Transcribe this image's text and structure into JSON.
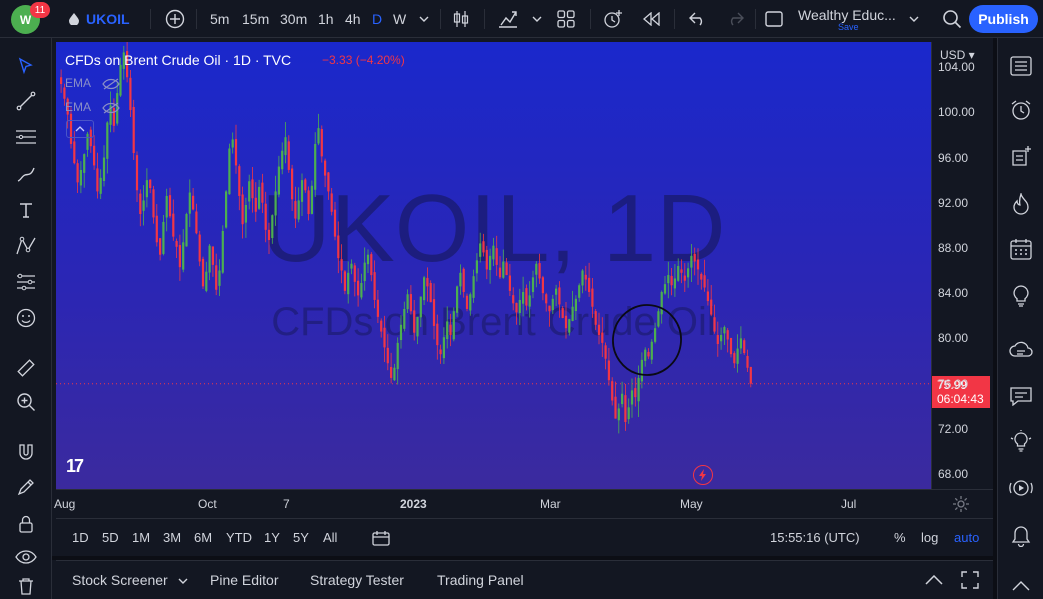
{
  "topbar": {
    "notifications": "11",
    "avatar_initials": "W",
    "symbol": "UKOIL",
    "intervals": [
      "5m",
      "15m",
      "30m",
      "1h",
      "4h",
      "D",
      "W"
    ],
    "selected_interval": "D",
    "layout_name": "Wealthy Educ...",
    "layout_status": "Save",
    "publish_label": "Publish"
  },
  "chart": {
    "title": "CFDs on Brent Crude Oil · 1D · TVC",
    "change": "−3.33 (−4.20%)",
    "indicators": [
      "EMA",
      "EMA"
    ],
    "watermark_symbol": "UKOIL, 1D",
    "watermark_name": "CFDs on Brent Crude Oil",
    "logo_text": "17",
    "accent_up": "#4caf50",
    "accent_down": "#f23645"
  },
  "price_scale": {
    "currency": "USD",
    "ticks": [
      "104.00",
      "100.00",
      "96.00",
      "92.00",
      "88.00",
      "84.00",
      "80.00",
      "76.00",
      "72.00",
      "68.00"
    ],
    "last_price": "75.99",
    "countdown": "06:04:43"
  },
  "time_scale": {
    "ticks": [
      "Aug",
      "Oct",
      "7",
      "2023",
      "Mar",
      "May",
      "Jul"
    ]
  },
  "range_bar": {
    "ranges": [
      "1D",
      "5D",
      "1M",
      "3M",
      "6M",
      "YTD",
      "1Y",
      "5Y",
      "All"
    ],
    "clock": "15:55:16 (UTC)",
    "percent_label": "%",
    "log_label": "log",
    "auto_label": "auto"
  },
  "bottom_panel": {
    "tabs": [
      "Stock Screener",
      "Pine Editor",
      "Strategy Tester",
      "Trading Panel"
    ]
  },
  "chart_data": {
    "type": "candlestick",
    "ylim": [
      66,
      108
    ],
    "x_labels": [
      "Aug",
      "Oct",
      "7",
      "2023",
      "Mar",
      "May",
      "Jul"
    ],
    "last_price": 75.99,
    "closes": [
      102.5,
      101.2,
      99.8,
      97.2,
      95.5,
      93.8,
      94.9,
      96.3,
      98.1,
      97.0,
      95.3,
      93.0,
      94.2,
      96.0,
      99.1,
      100.6,
      98.8,
      101.7,
      104.2,
      105.3,
      103.1,
      100.2,
      96.4,
      93.1,
      91.0,
      92.2,
      94.0,
      93.3,
      90.7,
      88.5,
      87.4,
      90.3,
      92.6,
      90.8,
      89.0,
      88.1,
      86.3,
      88.5,
      91.0,
      92.9,
      91.4,
      89.3,
      86.8,
      84.6,
      85.9,
      88.2,
      86.5,
      84.3,
      86.0,
      89.5,
      93.0,
      96.8,
      97.6,
      95.3,
      92.6,
      90.1,
      91.8,
      93.9,
      92.4,
      91.2,
      93.4,
      92.0,
      89.6,
      88.7,
      90.9,
      93.0,
      95.2,
      96.6,
      97.8,
      94.9,
      92.3,
      90.6,
      92.2,
      94.0,
      93.1,
      91.0,
      93.5,
      97.2,
      98.6,
      96.1,
      94.4,
      93.0,
      91.2,
      89.0,
      87.1,
      86.0,
      84.2,
      85.8,
      86.6,
      85.0,
      83.8,
      84.9,
      86.7,
      87.4,
      85.6,
      83.4,
      81.9,
      80.6,
      79.2,
      77.8,
      76.5,
      77.4,
      79.6,
      81.2,
      82.6,
      83.9,
      82.4,
      80.5,
      81.9,
      83.7,
      85.4,
      84.6,
      83.2,
      81.1,
      79.4,
      78.6,
      80.1,
      81.5,
      80.3,
      82.4,
      84.6,
      85.8,
      84.1,
      82.6,
      83.9,
      85.5,
      86.9,
      88.4,
      87.6,
      86.1,
      87.3,
      88.2,
      86.5,
      85.4,
      86.8,
      85.6,
      84.2,
      83.1,
      82.3,
      83.4,
      84.1,
      82.9,
      83.8,
      85.4,
      86.6,
      85.3,
      84.0,
      83.1,
      82.4,
      83.5,
      84.4,
      83.0,
      81.8,
      80.9,
      81.7,
      82.8,
      83.5,
      84.7,
      86.0,
      85.2,
      84.1,
      82.8,
      81.2,
      80.3,
      79.6,
      78.2,
      76.3,
      74.5,
      72.9,
      73.8,
      75.1,
      72.6,
      73.9,
      75.4,
      74.8,
      76.5,
      78.1,
      79.0,
      78.4,
      79.7,
      80.9,
      82.4,
      84.1,
      84.8,
      85.6,
      84.7,
      85.3,
      86.4,
      85.8,
      85.1,
      86.2,
      87.3,
      86.8,
      86.1,
      85.2,
      84.5,
      83.3,
      82.1,
      80.6,
      79.5,
      80.3,
      81.0,
      79.9,
      78.6,
      77.8,
      79.1,
      80.0,
      78.7,
      77.4,
      75.99
    ]
  }
}
